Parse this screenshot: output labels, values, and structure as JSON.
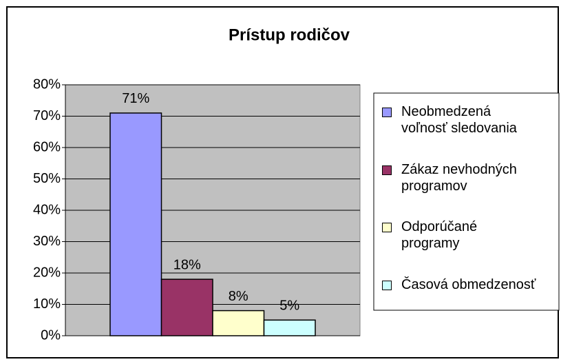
{
  "chart_data": {
    "type": "bar",
    "title": "Prístup rodičov",
    "categories": [
      null
    ],
    "series": [
      {
        "name": "Neobmedzená voľnosť sledovania",
        "color": "#9999ff",
        "values": [
          71
        ],
        "value_labels": [
          "71%"
        ]
      },
      {
        "name": "Zákaz nevhodných programov",
        "color": "#993366",
        "values": [
          18
        ],
        "value_labels": [
          "18%"
        ]
      },
      {
        "name": "Odporúčané programy",
        "color": "#ffffcc",
        "values": [
          8
        ],
        "value_labels": [
          "8%"
        ]
      },
      {
        "name": "Časová obmedzenosť",
        "color": "#ccffff",
        "values": [
          5
        ],
        "value_labels": [
          "5%"
        ]
      }
    ],
    "ylim": [
      0,
      80
    ],
    "yticks": [
      {
        "value": 0,
        "label": "0%"
      },
      {
        "value": 10,
        "label": "10%"
      },
      {
        "value": 20,
        "label": "20%"
      },
      {
        "value": 30,
        "label": "30%"
      },
      {
        "value": 40,
        "label": "40%"
      },
      {
        "value": 50,
        "label": "50%"
      },
      {
        "value": 60,
        "label": "60%"
      },
      {
        "value": 70,
        "label": "70%"
      },
      {
        "value": 80,
        "label": "80%"
      }
    ],
    "grid": true,
    "legend": "right",
    "plot_background": "#c0c0c0"
  }
}
